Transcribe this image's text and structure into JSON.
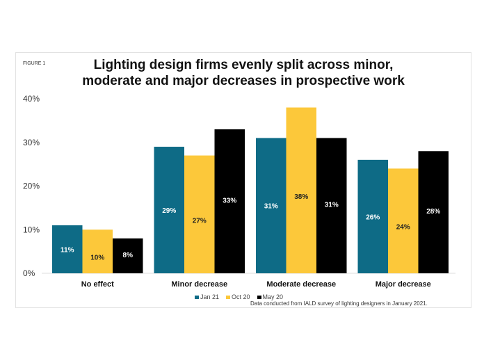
{
  "figure_label": "FIGURE 1",
  "chart_data": {
    "type": "bar",
    "title": "Lighting design firms evenly split across minor, moderate and major decreases in prospective work",
    "categories": [
      "No effect",
      "Minor decrease",
      "Moderate decrease",
      "Major decrease"
    ],
    "series": [
      {
        "name": "Jan 21",
        "color": "#0e6b86",
        "values": [
          11,
          29,
          31,
          26
        ]
      },
      {
        "name": "Oct 20",
        "color": "#fcc83a",
        "values": [
          10,
          27,
          38,
          24
        ]
      },
      {
        "name": "May 20",
        "color": "#000000",
        "values": [
          8,
          33,
          31,
          28
        ]
      }
    ],
    "yticks": [
      "0%",
      "10%",
      "20%",
      "30%",
      "40%"
    ],
    "ylim": [
      0,
      40
    ],
    "unit": "%",
    "grid": false,
    "legend": "bottom",
    "source": "Data conducted from IALD survey of lighting designers in January 2021."
  }
}
